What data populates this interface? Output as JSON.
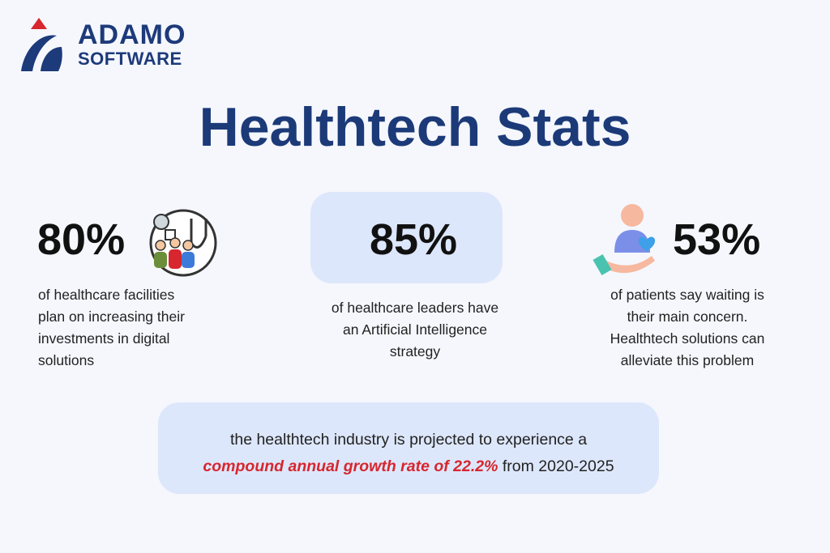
{
  "logo": {
    "name": "ADAMO",
    "subtitle": "SOFTWARE"
  },
  "title": "Healthtech Stats",
  "stats": [
    {
      "value": "80%",
      "lines": [
        "of healthcare facilities",
        "plan on increasing their",
        "investments in digital",
        "solutions"
      ]
    },
    {
      "value": "85%",
      "lines": [
        "of healthcare leaders have",
        "an Artificial Intelligence",
        "strategy"
      ]
    },
    {
      "value": "53%",
      "lines": [
        "of patients say waiting is",
        "their main concern.",
        "Healthtech solutions can",
        "alleviate this problem"
      ]
    }
  ],
  "footer": {
    "line1": "the healthtech industry is projected to experience a",
    "highlight": "compound annual growth rate of 22.2%",
    "line2_rest": " from 2020-2025"
  }
}
